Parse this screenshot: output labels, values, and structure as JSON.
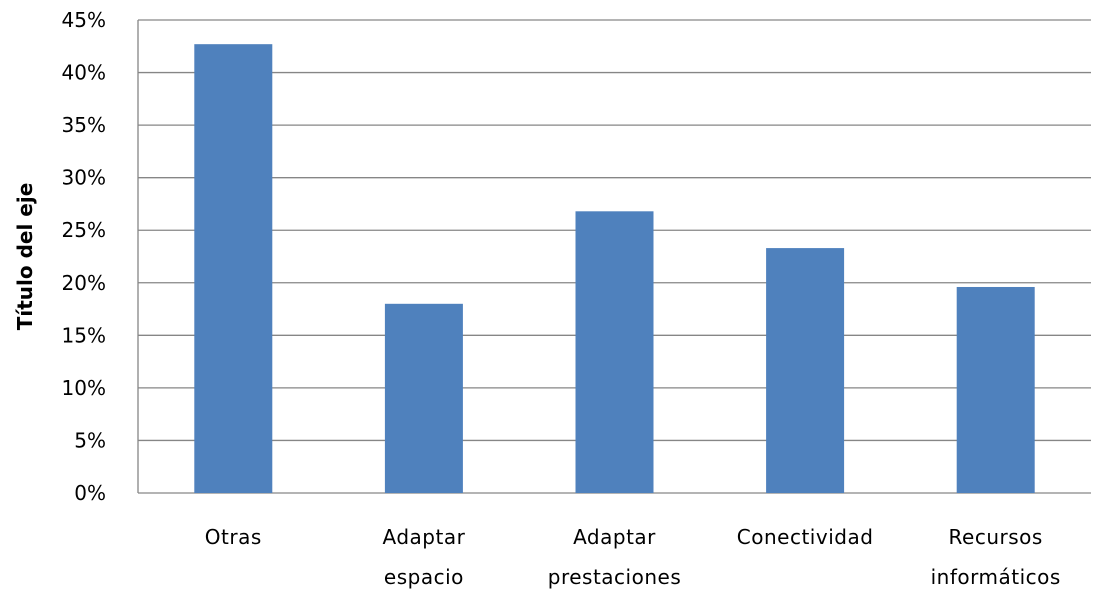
{
  "chart_data": {
    "type": "bar",
    "categories": [
      [
        "Otras"
      ],
      [
        "Adaptar",
        "espacio"
      ],
      [
        "Adaptar",
        "prestaciones"
      ],
      [
        "Conectividad"
      ],
      [
        "Recursos",
        "informáticos"
      ]
    ],
    "values": [
      42.7,
      18.0,
      26.8,
      23.3,
      19.6
    ],
    "title": "",
    "xlabel": "",
    "ylabel": "Título del eje",
    "ylim": [
      0,
      45
    ],
    "ytick_step": 5,
    "ytick_format": "percent",
    "grid": true,
    "legend": "none",
    "bar_color": "#4f81bd"
  }
}
